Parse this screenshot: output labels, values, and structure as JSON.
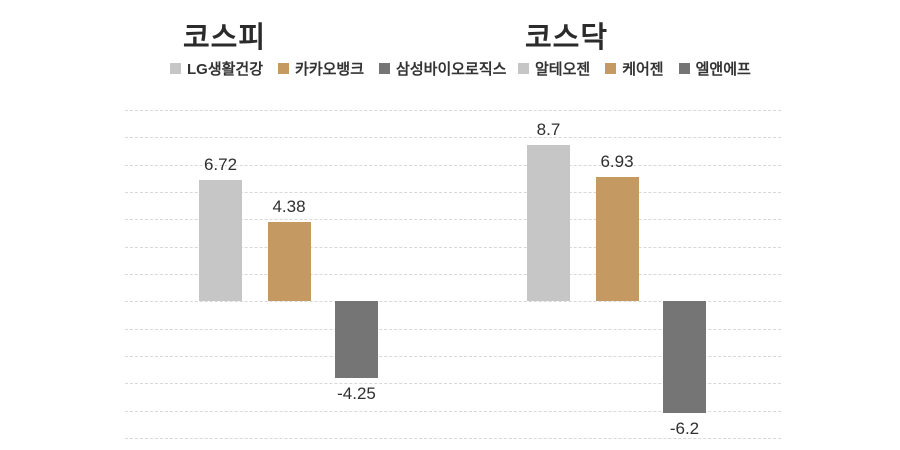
{
  "style": {
    "background": "#ffffff",
    "grid_color": "#d8d8d8",
    "title_color": "#2b2b2b",
    "text_color": "#333333"
  },
  "chart_data": [
    {
      "type": "bar",
      "title": "코스피",
      "categories": [
        "LG생활건강",
        "카카오뱅크",
        "삼성바이오로직스"
      ],
      "values": [
        6.72,
        4.38,
        -4.25
      ],
      "value_labels": [
        "6.72",
        "4.38",
        "-4.25"
      ],
      "colors": [
        "#c6c6c6",
        "#c49a62",
        "#757575"
      ],
      "xlabel": "",
      "ylabel": "",
      "ylim": [
        -7.6,
        10.6
      ],
      "grid": true,
      "grid_style": "dashed-horizontal",
      "legend_position": "top"
    },
    {
      "type": "bar",
      "title": "코스닥",
      "categories": [
        "알테오젠",
        "케어젠",
        "엘앤에프"
      ],
      "values": [
        8.7,
        6.93,
        -6.2
      ],
      "value_labels": [
        "8.7",
        "6.93",
        "-6.2"
      ],
      "colors": [
        "#c6c6c6",
        "#c49a62",
        "#757575"
      ],
      "xlabel": "",
      "ylabel": "",
      "ylim": [
        -7.6,
        10.6
      ],
      "grid": true,
      "grid_style": "dashed-horizontal",
      "legend_position": "top"
    }
  ]
}
